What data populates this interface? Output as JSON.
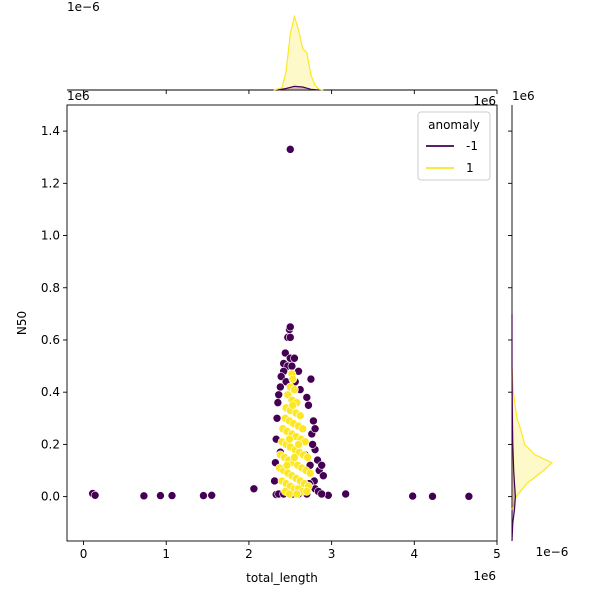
{
  "chart_data": {
    "type": "scatter",
    "kind": "jointplot",
    "x_label": "total_length",
    "y_label": "N50",
    "x_offset_label": "1e6",
    "y_offset_label": "1e6",
    "x_ticks": [
      "0",
      "1",
      "2",
      "3",
      "4",
      "5"
    ],
    "y_ticks": [
      "0.0",
      "0.2",
      "0.4",
      "0.6",
      "0.8",
      "1.0",
      "1.2",
      "1.4"
    ],
    "xlim": [
      -0.2,
      5.0
    ],
    "ylim": [
      -0.17,
      1.5
    ],
    "marginal_top": {
      "scale_label": "1e−6",
      "axis_offset_label": "1e6"
    },
    "marginal_right": {
      "scale_label": "1e−6",
      "axis_offset_label": "1e6"
    },
    "legend": {
      "title": "anomaly",
      "placement": "upper right",
      "entries": [
        {
          "label": "-1",
          "color": "#440154"
        },
        {
          "label": "1",
          "color": "#fde725"
        }
      ]
    },
    "series": [
      {
        "name": "-1",
        "color": "#440154",
        "points": [
          [
            0.11,
            0.012
          ],
          [
            0.14,
            0.005
          ],
          [
            0.73,
            0.003
          ],
          [
            0.93,
            0.004
          ],
          [
            1.07,
            0.004
          ],
          [
            1.45,
            0.004
          ],
          [
            1.55,
            0.005
          ],
          [
            2.06,
            0.03
          ],
          [
            2.33,
            0.008
          ],
          [
            2.96,
            0.005
          ],
          [
            3.17,
            0.01
          ],
          [
            3.98,
            0.002
          ],
          [
            4.22,
            0.001
          ],
          [
            4.66,
            0.001
          ],
          [
            2.5,
            1.33
          ],
          [
            2.49,
            0.64
          ],
          [
            2.5,
            0.65
          ],
          [
            2.47,
            0.61
          ],
          [
            2.5,
            0.61
          ],
          [
            2.44,
            0.55
          ],
          [
            2.5,
            0.53
          ],
          [
            2.55,
            0.53
          ],
          [
            2.42,
            0.51
          ],
          [
            2.47,
            0.5
          ],
          [
            2.52,
            0.5
          ],
          [
            2.42,
            0.48
          ],
          [
            2.6,
            0.48
          ],
          [
            2.39,
            0.46
          ],
          [
            2.45,
            0.44
          ],
          [
            2.56,
            0.44
          ],
          [
            2.75,
            0.45
          ],
          [
            2.38,
            0.42
          ],
          [
            2.62,
            0.41
          ],
          [
            2.36,
            0.39
          ],
          [
            2.7,
            0.38
          ],
          [
            2.35,
            0.36
          ],
          [
            2.72,
            0.35
          ],
          [
            2.78,
            0.29
          ],
          [
            2.76,
            0.24
          ],
          [
            2.8,
            0.26
          ],
          [
            2.34,
            0.3
          ],
          [
            2.33,
            0.22
          ],
          [
            2.8,
            0.18
          ],
          [
            2.83,
            0.14
          ],
          [
            2.85,
            0.1
          ],
          [
            2.88,
            0.12
          ],
          [
            2.9,
            0.08
          ],
          [
            2.79,
            0.06
          ],
          [
            2.8,
            0.03
          ],
          [
            2.73,
            0.05
          ],
          [
            2.66,
            0.02
          ],
          [
            2.7,
            0.01
          ],
          [
            2.36,
            0.01
          ],
          [
            2.42,
            0.01
          ],
          [
            2.45,
            0.02
          ],
          [
            2.53,
            0.01
          ],
          [
            2.6,
            0.01
          ],
          [
            2.84,
            0.02
          ],
          [
            2.88,
            0.01
          ],
          [
            2.31,
            0.06
          ],
          [
            2.32,
            0.13
          ],
          [
            2.38,
            0.17
          ],
          [
            2.77,
            0.2
          ],
          [
            2.74,
            0.12
          ],
          [
            2.68,
            0.16
          ]
        ]
      },
      {
        "name": "1",
        "color": "#fde725",
        "points": [
          [
            2.52,
            0.47
          ],
          [
            2.53,
            0.45
          ],
          [
            2.5,
            0.42
          ],
          [
            2.55,
            0.41
          ],
          [
            2.47,
            0.39
          ],
          [
            2.52,
            0.37
          ],
          [
            2.58,
            0.36
          ],
          [
            2.45,
            0.34
          ],
          [
            2.5,
            0.33
          ],
          [
            2.57,
            0.32
          ],
          [
            2.62,
            0.31
          ],
          [
            2.44,
            0.3
          ],
          [
            2.49,
            0.29
          ],
          [
            2.54,
            0.28
          ],
          [
            2.6,
            0.27
          ],
          [
            2.65,
            0.26
          ],
          [
            2.41,
            0.26
          ],
          [
            2.46,
            0.25
          ],
          [
            2.52,
            0.24
          ],
          [
            2.57,
            0.23
          ],
          [
            2.63,
            0.22
          ],
          [
            2.68,
            0.21
          ],
          [
            2.4,
            0.21
          ],
          [
            2.45,
            0.2
          ],
          [
            2.5,
            0.19
          ],
          [
            2.56,
            0.18
          ],
          [
            2.61,
            0.17
          ],
          [
            2.66,
            0.16
          ],
          [
            2.71,
            0.15
          ],
          [
            2.38,
            0.16
          ],
          [
            2.43,
            0.15
          ],
          [
            2.48,
            0.14
          ],
          [
            2.54,
            0.13
          ],
          [
            2.59,
            0.12
          ],
          [
            2.64,
            0.11
          ],
          [
            2.69,
            0.1
          ],
          [
            2.74,
            0.09
          ],
          [
            2.37,
            0.11
          ],
          [
            2.42,
            0.1
          ],
          [
            2.47,
            0.09
          ],
          [
            2.52,
            0.08
          ],
          [
            2.57,
            0.07
          ],
          [
            2.62,
            0.06
          ],
          [
            2.67,
            0.05
          ],
          [
            2.72,
            0.04
          ],
          [
            2.4,
            0.06
          ],
          [
            2.45,
            0.05
          ],
          [
            2.5,
            0.04
          ],
          [
            2.55,
            0.03
          ],
          [
            2.6,
            0.03
          ],
          [
            2.65,
            0.02
          ],
          [
            2.44,
            0.02
          ],
          [
            2.49,
            0.01
          ],
          [
            2.58,
            0.01
          ],
          [
            2.7,
            0.02
          ],
          [
            2.53,
            0.35
          ],
          [
            2.49,
            0.22
          ],
          [
            2.6,
            0.2
          ],
          [
            2.55,
            0.15
          ],
          [
            2.46,
            0.12
          ]
        ]
      }
    ],
    "top_density": [
      {
        "series": "-1",
        "x": [
          2.35,
          2.45,
          2.55,
          2.65,
          2.75,
          2.85
        ],
        "density": [
          0.0,
          0.02,
          0.05,
          0.04,
          0.01,
          0.0
        ]
      },
      {
        "series": "1",
        "x": [
          2.3,
          2.4,
          2.45,
          2.5,
          2.55,
          2.6,
          2.65,
          2.7,
          2.75,
          2.8,
          2.85,
          2.9
        ],
        "density": [
          0.0,
          0.03,
          0.25,
          0.75,
          0.98,
          0.8,
          0.55,
          0.5,
          0.2,
          0.06,
          0.01,
          0.0
        ]
      }
    ],
    "right_density": [
      {
        "series": "-1",
        "y": [
          -0.17,
          -0.1,
          -0.05,
          0.0,
          0.05,
          0.1,
          0.2,
          0.3,
          0.5,
          0.7
        ],
        "density": [
          0.0,
          0.02,
          0.06,
          0.08,
          0.06,
          0.04,
          0.02,
          0.01,
          0.0,
          0.0
        ]
      },
      {
        "series": "1",
        "y": [
          -0.05,
          0.0,
          0.05,
          0.1,
          0.13,
          0.16,
          0.2,
          0.25,
          0.3,
          0.4,
          0.5
        ],
        "density": [
          0.0,
          0.1,
          0.35,
          0.75,
          0.95,
          0.55,
          0.3,
          0.22,
          0.12,
          0.03,
          0.0
        ]
      }
    ]
  }
}
